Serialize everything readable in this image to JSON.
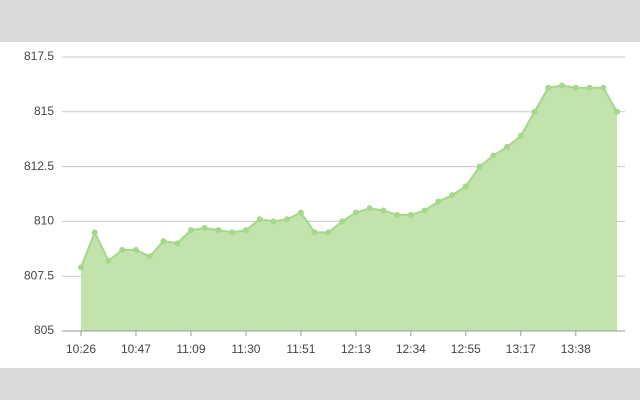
{
  "chart_data": {
    "type": "area",
    "categories": [
      "10:26",
      null,
      null,
      null,
      "10:47",
      null,
      null,
      null,
      "11:09",
      null,
      null,
      null,
      "11:30",
      null,
      null,
      null,
      "11:51",
      null,
      null,
      null,
      "12:13",
      null,
      null,
      null,
      "12:34",
      null,
      null,
      null,
      "12:55",
      null,
      null,
      null,
      "13:17",
      null,
      null,
      null,
      "13:38",
      null,
      null,
      null
    ],
    "values": [
      807.9,
      809.5,
      808.2,
      808.7,
      808.7,
      808.4,
      809.1,
      809.0,
      809.6,
      809.7,
      809.6,
      809.5,
      809.6,
      810.1,
      810.0,
      810.1,
      810.4,
      809.5,
      809.5,
      810.0,
      810.4,
      810.6,
      810.5,
      810.3,
      810.3,
      810.5,
      810.9,
      811.2,
      811.6,
      812.5,
      813.0,
      813.4,
      813.9,
      815.0,
      816.1,
      816.2,
      816.1,
      816.1,
      816.1,
      815.0
    ],
    "color": "#a6d78c",
    "fill_color": "#c2e3ab",
    "ylim": [
      805,
      817.5
    ],
    "yticks": [
      805,
      807.5,
      810,
      812.5,
      815,
      817.5
    ],
    "grid": true
  }
}
